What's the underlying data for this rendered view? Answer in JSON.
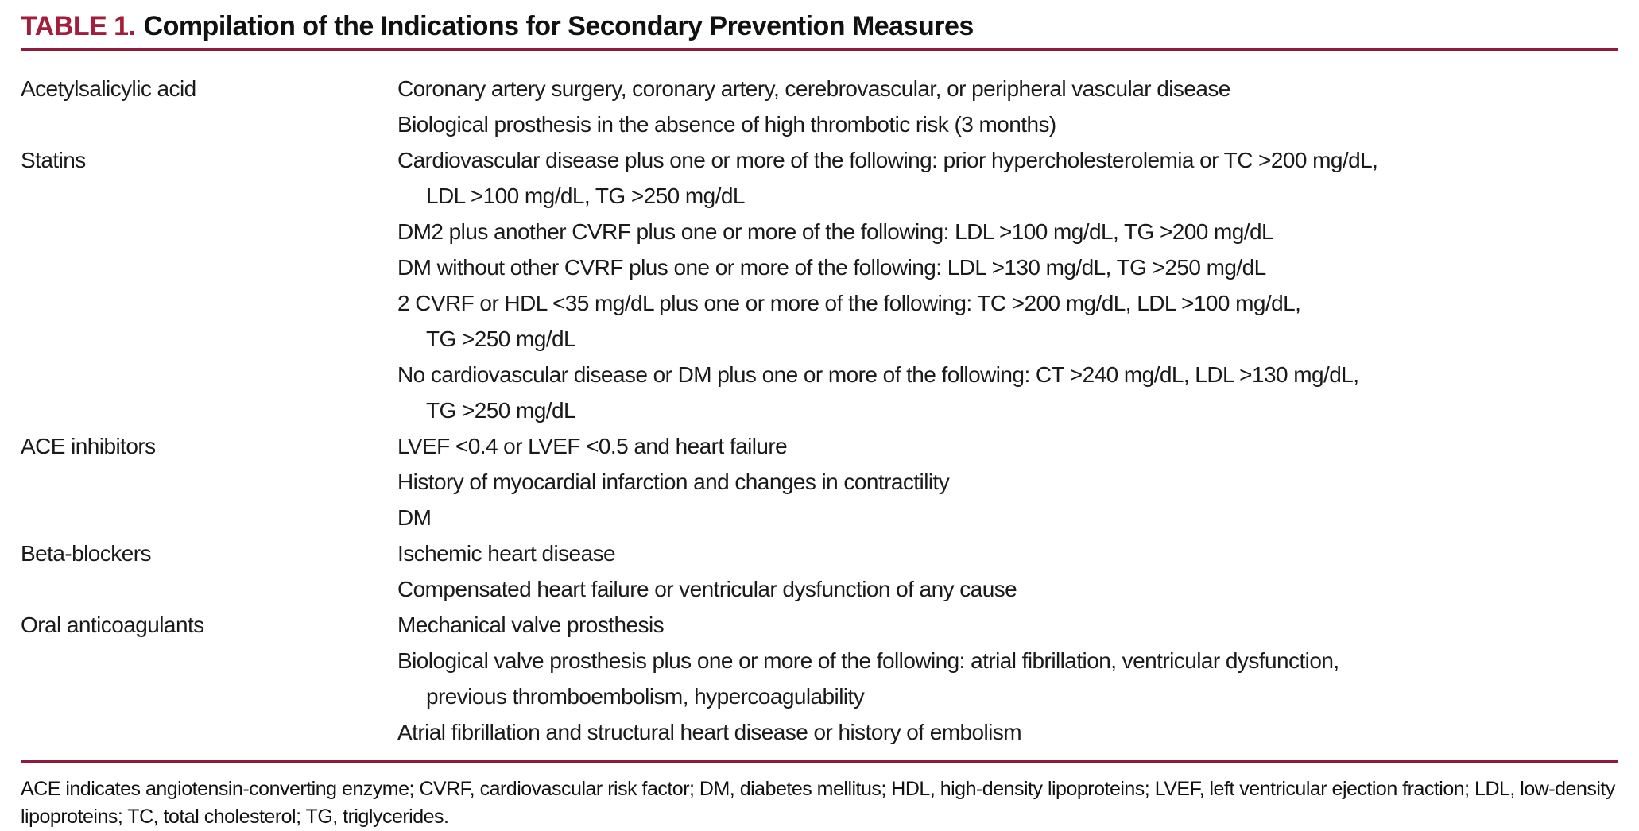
{
  "title": {
    "label": "TABLE 1.",
    "text": "Compilation of the Indications for Secondary Prevention Measures"
  },
  "colors": {
    "accent_red": "#A41E3C",
    "rule_red": "#8E1B3B",
    "text_black": "#1A1A1A"
  },
  "table": {
    "rows": [
      {
        "drug": "Acetylsalicylic acid",
        "lines": [
          "Coronary artery surgery, coronary artery, cerebrovascular, or peripheral vascular disease",
          "Biological prosthesis in the absence of high thrombotic risk (3 months)"
        ]
      },
      {
        "drug": "Statins",
        "lines": [
          "Cardiovascular disease plus one or more of the following: prior hypercholesterolemia or TC >200 mg/dL,",
          "LDL >100 mg/dL, TG >250 mg/dL",
          "DM2 plus another CVRF plus one or more of the following: LDL >100 mg/dL, TG >200 mg/dL",
          "DM without other CVRF plus one or more of the following: LDL >130 mg/dL, TG >250 mg/dL",
          "2 CVRF or HDL <35 mg/dL plus one or more of the following: TC >200 mg/dL, LDL >100 mg/dL,",
          "TG >250 mg/dL",
          "No cardiovascular disease or DM plus one or more of the following: CT >240 mg/dL, LDL >130 mg/dL,",
          "TG >250 mg/dL"
        ]
      },
      {
        "drug": "ACE inhibitors",
        "lines": [
          "LVEF <0.4 or LVEF <0.5 and heart failure",
          "History of myocardial infarction and changes in contractility",
          "DM"
        ]
      },
      {
        "drug": "Beta-blockers",
        "lines": [
          "Ischemic heart disease",
          "Compensated heart failure or ventricular dysfunction of any cause"
        ]
      },
      {
        "drug": "Oral anticoagulants",
        "lines": [
          "Mechanical valve prosthesis",
          "Biological valve prosthesis plus one or more of the following: atrial fibrillation, ventricular dysfunction,",
          "previous thromboembolism, hypercoagulability",
          "Atrial fibrillation and structural heart disease or history of embolism"
        ]
      }
    ]
  },
  "footnote": "ACE indicates angiotensin-converting enzyme; CVRF, cardiovascular risk factor; DM, diabetes mellitus; HDL, high-density lipoproteins; LVEF, left ventricular ejection fraction; LDL, low-density lipoproteins; TC, total cholesterol; TG, triglycerides."
}
